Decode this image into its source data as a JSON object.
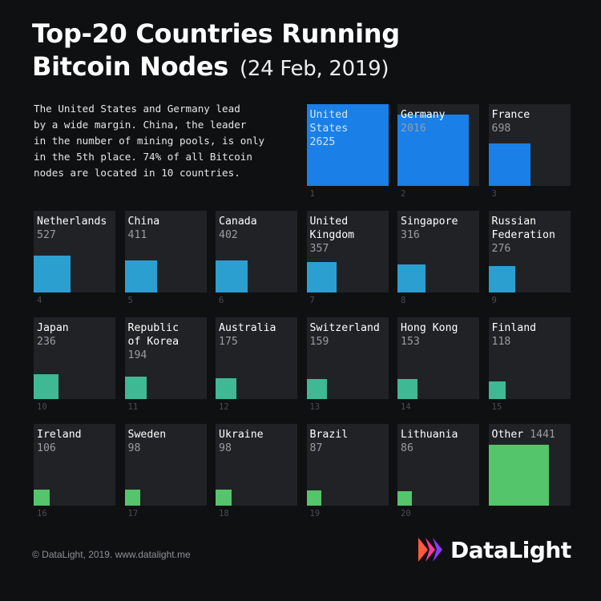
{
  "title": {
    "main": "Top-20 Countries Running\nBitcoin Nodes",
    "date": "(24 Feb, 2019)"
  },
  "intro": "The United States and Germany lead\nby a wide margin. China, the leader\nin the number of mining pools, is only\nin the 5th place. 74% of all Bitcoin\nnodes are located in 10 countries.",
  "footer": "© DataLight, 2019. www.datalight.me",
  "brand": {
    "text": "DataLight",
    "logo_colors": [
      "#ff5a3c",
      "#ff3c9b",
      "#8a3cff"
    ]
  },
  "colors": {
    "tier1": "#1a7fe6",
    "tier2": "#2b9fd0",
    "tier3": "#3fb894",
    "tier4": "#55c56c",
    "tile_bg": "#212226"
  },
  "chart_data": {
    "type": "bar",
    "encoding": "area",
    "categories": [
      "United\nStates",
      "Germany",
      "France",
      "Netherlands",
      "China",
      "Canada",
      "United\nKingdom",
      "Singapore",
      "Russian\nFederation",
      "Japan",
      "Republic\nof Korea",
      "Australia",
      "Switzerland",
      "Hong Kong",
      "Finland",
      "Ireland",
      "Sweden",
      "Ukraine",
      "Brazil",
      "Lithuania",
      "Other"
    ],
    "values": [
      2625,
      2016,
      698,
      527,
      411,
      402,
      357,
      316,
      276,
      236,
      194,
      175,
      159,
      153,
      118,
      106,
      98,
      98,
      87,
      86,
      1441
    ],
    "value_labels": [
      "2625",
      "2016",
      "698",
      "527",
      "411",
      "402",
      "357",
      "316",
      "276",
      "236",
      "194",
      "175",
      "159",
      "153",
      "118",
      "106",
      "98",
      "98",
      "87",
      "86",
      "1441"
    ],
    "ranks": [
      "1",
      "2",
      "3",
      "4",
      "5",
      "6",
      "7",
      "8",
      "9",
      "10",
      "11",
      "12",
      "13",
      "14",
      "15",
      "16",
      "17",
      "18",
      "19",
      "20",
      ""
    ],
    "max_value": 2625
  }
}
